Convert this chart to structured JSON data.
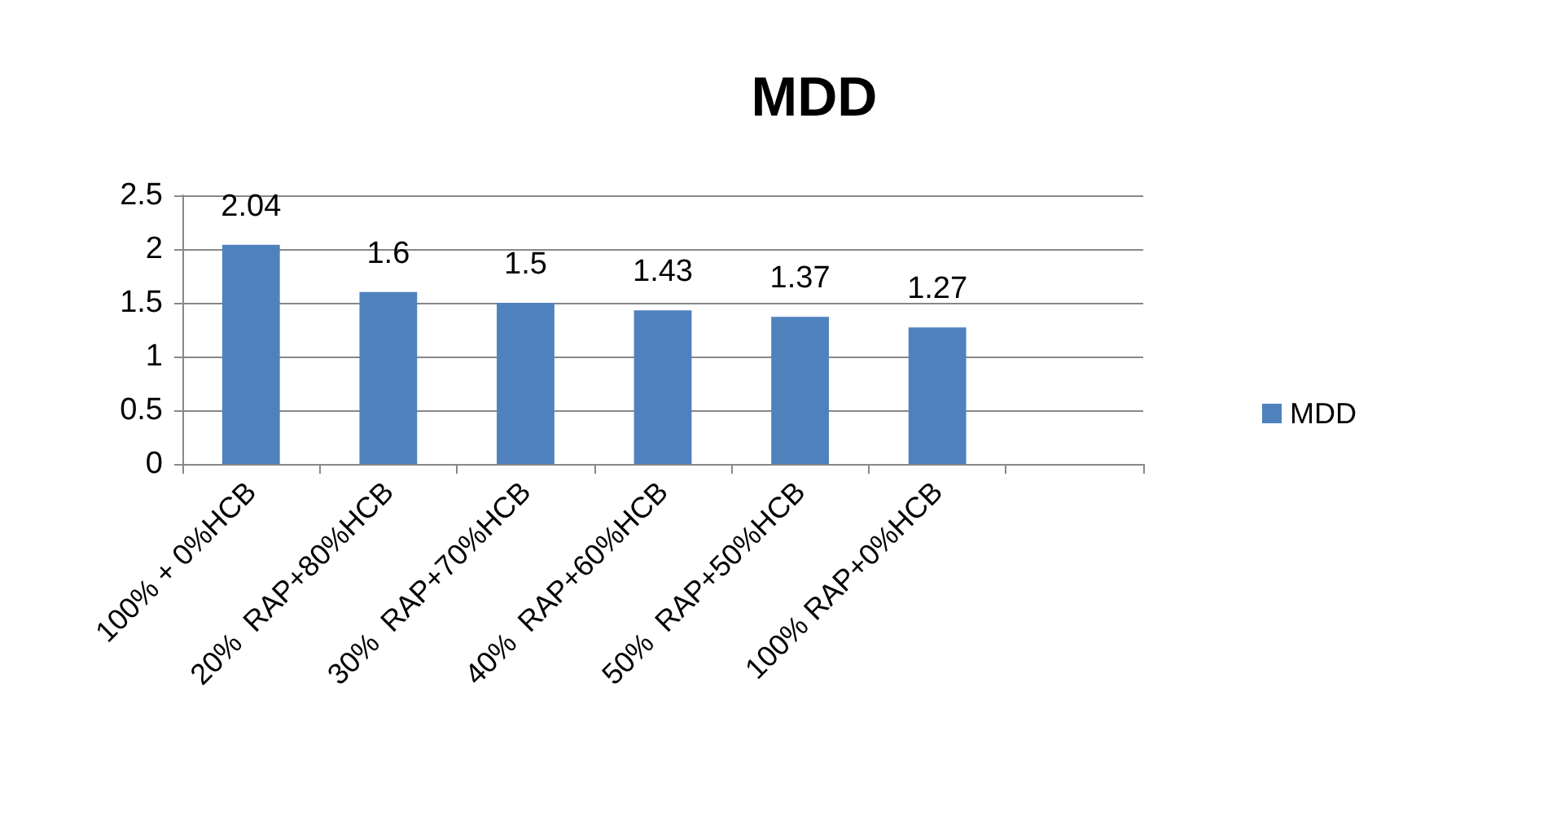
{
  "chart_data": {
    "type": "bar",
    "title": "MDD",
    "categories": [
      "100% + 0%HCB",
      "20%  RAP+80%HCB",
      "30%  RAP+70%HCB",
      "40%  RAP+60%HCB",
      "50%  RAP+50%HCB",
      "100% RAP+0%HCB",
      null
    ],
    "series": [
      {
        "name": "MDD",
        "color": "#4f81bd",
        "values": [
          2.04,
          1.6,
          1.5,
          1.43,
          1.37,
          1.27,
          null
        ]
      }
    ],
    "ylim": [
      0,
      2.5
    ],
    "yticks": [
      0,
      0.5,
      1,
      1.5,
      2,
      2.5
    ],
    "grid": "y",
    "legend": "right",
    "data_labels": true
  }
}
